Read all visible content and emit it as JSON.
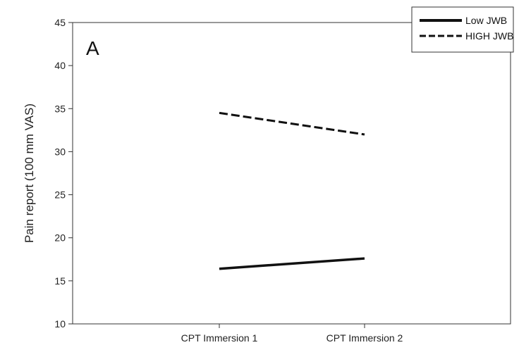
{
  "chart_data": {
    "type": "line",
    "panel_label": "A",
    "title": "",
    "xlabel": "",
    "ylabel": "Pain report (100 mm VAS)",
    "categories": [
      "CPT Immersion 1",
      "CPT Immersion 2"
    ],
    "ylim": [
      10,
      45
    ],
    "yticks": [
      10,
      15,
      20,
      25,
      30,
      35,
      40,
      45
    ],
    "grid": false,
    "legend_position": "top-right",
    "series": [
      {
        "name": "Low JWB",
        "style": "solid",
        "color": "#111111",
        "values": [
          16.4,
          17.6
        ]
      },
      {
        "name": "HIGH JWB",
        "style": "dashed",
        "color": "#111111",
        "values": [
          34.5,
          32.0
        ]
      }
    ]
  }
}
